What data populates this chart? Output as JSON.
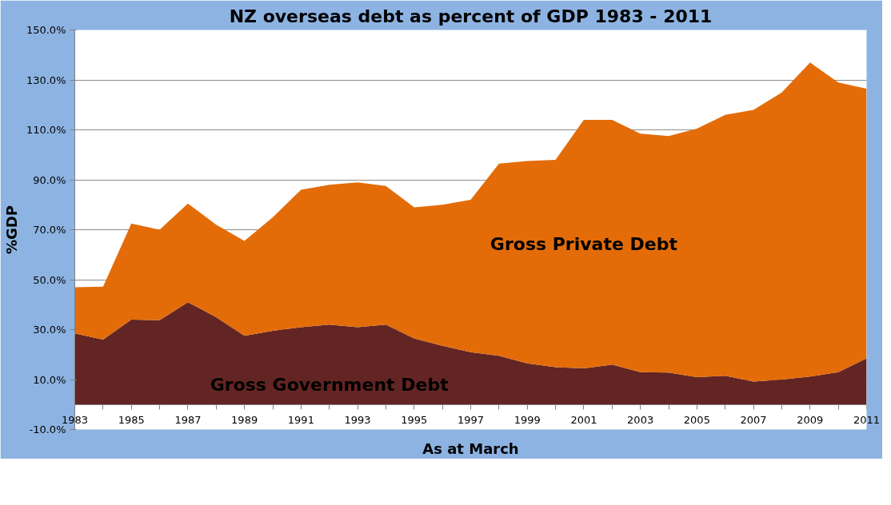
{
  "chart_data": {
    "type": "area",
    "stacked": true,
    "title": "NZ overseas debt as percent of GDP 1983 - 2011",
    "xlabel": "As at March",
    "ylabel": "%GDP",
    "x": [
      1983,
      1984,
      1985,
      1986,
      1987,
      1988,
      1989,
      1990,
      1991,
      1992,
      1993,
      1994,
      1995,
      1996,
      1997,
      1998,
      1999,
      2000,
      2001,
      2002,
      2003,
      2004,
      2005,
      2006,
      2007,
      2008,
      2009,
      2010,
      2011
    ],
    "series": [
      {
        "name": "Gross Government Debt",
        "color": "#632523",
        "values": [
          28.5,
          26,
          34,
          33.8,
          41,
          35,
          27.5,
          29.5,
          31,
          32,
          31,
          32,
          26.5,
          23.5,
          21,
          19.5,
          16.5,
          15,
          14.5,
          16,
          13,
          12.8,
          11,
          11.5,
          9.2,
          10,
          11.2,
          13,
          18.5
        ]
      },
      {
        "name": "Gross Private Debt",
        "color": "#e36c09",
        "values": [
          18.5,
          21.2,
          38.5,
          36.2,
          39.5,
          37,
          38,
          45.5,
          55,
          56,
          58,
          55.5,
          52.5,
          56.5,
          61,
          77,
          81,
          83,
          99.5,
          98,
          95.5,
          94.7,
          99.5,
          104.5,
          108.8,
          115,
          125.8,
          116,
          108
        ]
      }
    ],
    "xlim": [
      1983,
      2011
    ],
    "xticks": [
      1983,
      {
        "value": 1984,
        "label": null
      },
      1985,
      {
        "value": 1986,
        "label": null
      },
      1987,
      {
        "value": 1988,
        "label": null
      },
      1989,
      {
        "value": 1990,
        "label": null
      },
      1991,
      {
        "value": 1992,
        "label": null
      },
      1993,
      {
        "value": 1994,
        "label": null
      },
      1995,
      {
        "value": 1996,
        "label": null
      },
      1997,
      {
        "value": 1998,
        "label": null
      },
      1999,
      {
        "value": 2000,
        "label": null
      },
      2001,
      {
        "value": 2002,
        "label": null
      },
      2003,
      {
        "value": 2004,
        "label": null
      },
      2005,
      {
        "value": 2006,
        "label": null
      },
      2007,
      {
        "value": 2008,
        "label": null
      },
      2009,
      {
        "value": 2010,
        "label": null
      },
      2011
    ],
    "ylim": [
      -10,
      150
    ],
    "yticks": [
      {
        "value": -10,
        "label": "-10.0%"
      },
      {
        "value": 10,
        "label": "10.0%"
      },
      {
        "value": 30,
        "label": "30.0%"
      },
      {
        "value": 50,
        "label": "50.0%"
      },
      {
        "value": 70,
        "label": "70.0%"
      },
      {
        "value": 90,
        "label": "90.0%"
      },
      {
        "value": 110,
        "label": "110.0%"
      },
      {
        "value": 130,
        "label": "130.0%"
      },
      {
        "value": 150,
        "label": "150.0%"
      }
    ],
    "grid": "y",
    "legend": false
  }
}
